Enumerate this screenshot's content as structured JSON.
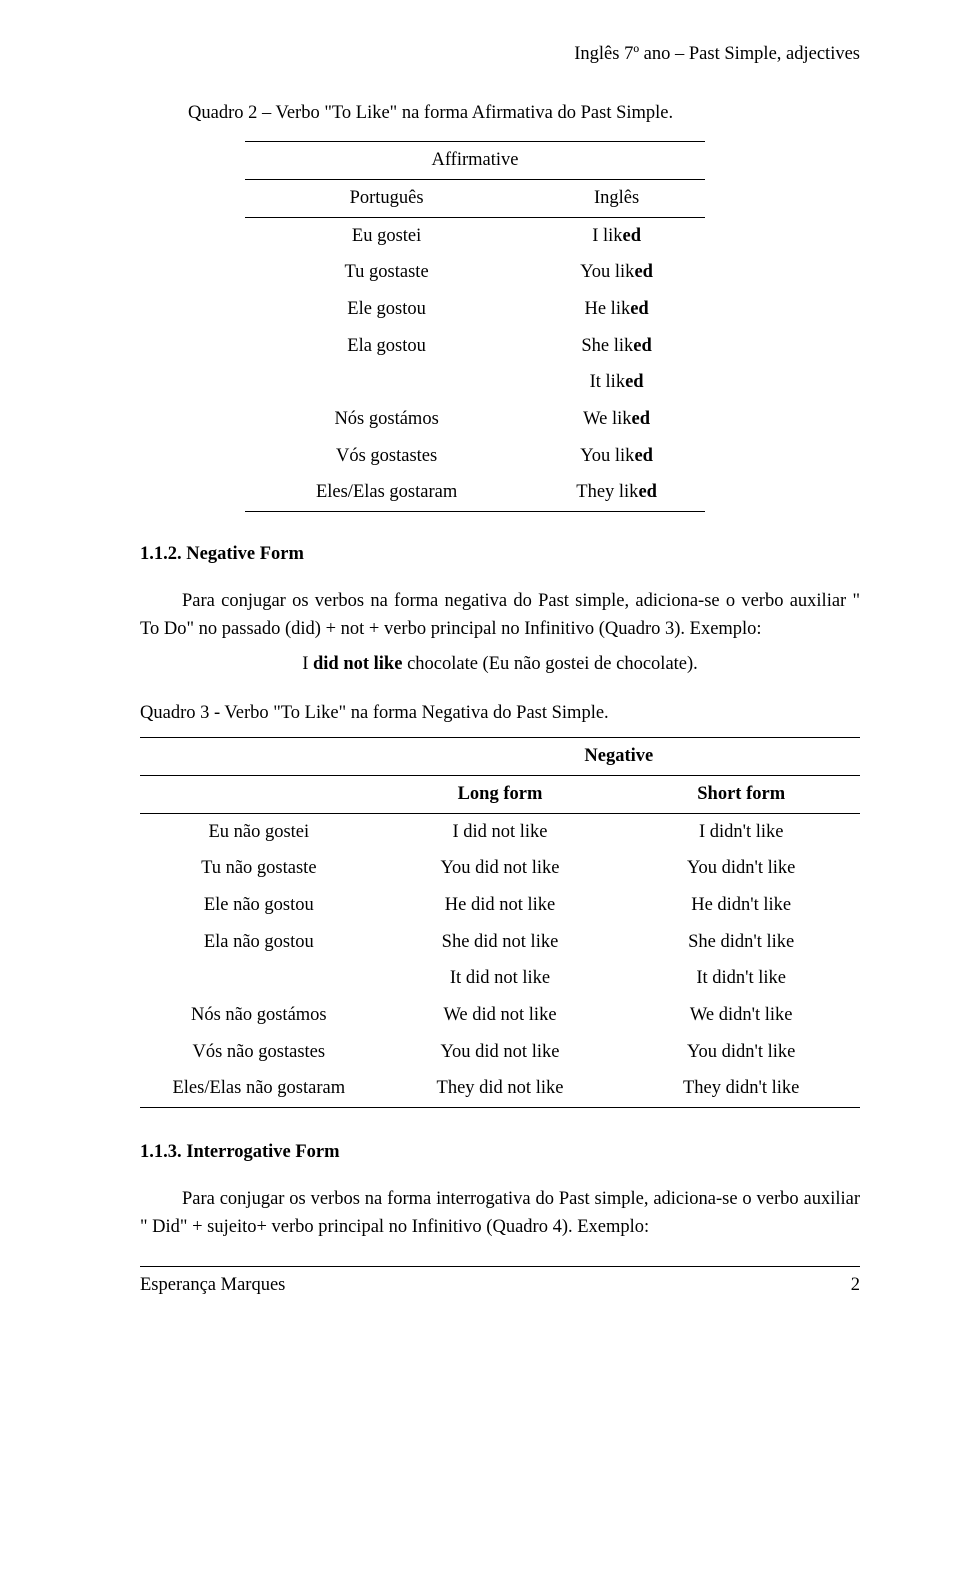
{
  "header": {
    "text": "Inglês 7º ano – Past Simple, adjectives"
  },
  "quadro2": {
    "caption": "Quadro 2 – Verbo \"To Like\" na forma Afirmativa do Past Simple.",
    "title": "Affirmative",
    "col_pt": "Português",
    "col_en": "Inglês",
    "rows": [
      {
        "pt": "Eu gostei",
        "en_pre": "I lik",
        "en_suf": "ed"
      },
      {
        "pt": "Tu gostaste",
        "en_pre": "You lik",
        "en_suf": "ed"
      },
      {
        "pt": "Ele gostou",
        "en_pre": "He lik",
        "en_suf": "ed"
      },
      {
        "pt": "Ela gostou",
        "en_pre": "She lik",
        "en_suf": "ed"
      },
      {
        "pt": "",
        "en_pre": "It lik",
        "en_suf": "ed"
      },
      {
        "pt": "Nós gostámos",
        "en_pre": "We lik",
        "en_suf": "ed"
      },
      {
        "pt": "Vós gostastes",
        "en_pre": "You lik",
        "en_suf": "ed"
      },
      {
        "pt": "Eles/Elas gostaram",
        "en_pre": "They lik",
        "en_suf": "ed"
      }
    ]
  },
  "sec112": {
    "heading": "1.1.2. Negative Form",
    "para": "Para conjugar os verbos na forma negativa do Past simple, adiciona-se o verbo auxiliar \" To Do\" no passado (did) + not + verbo principal no Infinitivo (Quadro 3). Exemplo:",
    "example_pre": "I ",
    "example_bold": "did not like",
    "example_post": " chocolate (Eu não gostei de chocolate)."
  },
  "quadro3": {
    "caption": "Quadro 3 - Verbo \"To Like\" na forma Negativa do Past Simple.",
    "title": "Negative",
    "col_long": "Long form",
    "col_short": "Short form",
    "rows": [
      {
        "pt": "Eu não gostei",
        "long": "I did not like",
        "short": "I didn't like"
      },
      {
        "pt": "Tu não gostaste",
        "long": "You did not like",
        "short": "You didn't like"
      },
      {
        "pt": "Ele não gostou",
        "long": "He did not like",
        "short": "He didn't like"
      },
      {
        "pt": "Ela não gostou",
        "long": "She did not like",
        "short": "She didn't like"
      },
      {
        "pt": "",
        "long": "It did not like",
        "short": "It didn't like"
      },
      {
        "pt": "Nós não gostámos",
        "long": "We did not like",
        "short": "We didn't like"
      },
      {
        "pt": "Vós não gostastes",
        "long": "You did not like",
        "short": "You didn't like"
      },
      {
        "pt": "Eles/Elas não gostaram",
        "long": "They did not like",
        "short": "They didn't like"
      }
    ]
  },
  "sec113": {
    "heading": "1.1.3. Interrogative Form",
    "para": "Para conjugar os verbos na forma interrogativa do Past simple, adiciona-se o verbo auxiliar \" Did\" + sujeito+ verbo principal no Infinitivo (Quadro 4). Exemplo:"
  },
  "footer": {
    "author": "Esperança Marques",
    "page": "2"
  }
}
